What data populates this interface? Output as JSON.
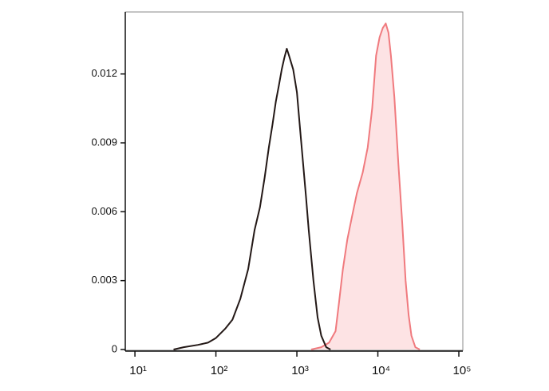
{
  "chart_data": {
    "type": "area",
    "xscale": "log",
    "xlim": [
      7.6,
      112000
    ],
    "xticks": [
      {
        "value": 10,
        "label": "10¹"
      },
      {
        "value": 100,
        "label": "10²"
      },
      {
        "value": 1000,
        "label": "10³"
      },
      {
        "value": 10000,
        "label": "10⁴"
      },
      {
        "value": 100000,
        "label": "10⁵"
      }
    ],
    "ylim": [
      0,
      0.0147
    ],
    "yticks": [
      0,
      0.003,
      0.006,
      0.009,
      0.012
    ],
    "series": [
      {
        "color": "#f07a7e",
        "fill": "#fde3e4",
        "x": [
          1500,
          2000,
          2500,
          3000,
          3300,
          3700,
          4200,
          4800,
          5500,
          6500,
          7500,
          8500,
          9500,
          10500,
          11500,
          12500,
          13500,
          14500,
          16000,
          18000,
          20000,
          22000,
          24000,
          26000,
          29000,
          33000
        ],
        "values": [
          0,
          0.0001,
          0.0003,
          0.0008,
          0.002,
          0.0035,
          0.0048,
          0.0058,
          0.0068,
          0.0077,
          0.0088,
          0.0105,
          0.0128,
          0.0136,
          0.014,
          0.0142,
          0.0138,
          0.0128,
          0.011,
          0.008,
          0.0055,
          0.003,
          0.0015,
          0.0006,
          0.0001,
          0
        ]
      },
      {
        "color": "#231816",
        "fill": "none",
        "x": [
          30,
          40,
          60,
          80,
          100,
          130,
          160,
          200,
          250,
          300,
          350,
          400,
          450,
          500,
          550,
          600,
          650,
          700,
          750,
          800,
          900,
          1000,
          1100,
          1200,
          1300,
          1400,
          1600,
          1800,
          2000,
          2300,
          2600
        ],
        "values": [
          0,
          0.0001,
          0.0002,
          0.0003,
          0.0005,
          0.0009,
          0.0013,
          0.0022,
          0.0035,
          0.0052,
          0.0062,
          0.0075,
          0.0088,
          0.0098,
          0.0108,
          0.0115,
          0.0122,
          0.0127,
          0.0131,
          0.0128,
          0.0122,
          0.0112,
          0.0095,
          0.008,
          0.0066,
          0.0052,
          0.003,
          0.0014,
          0.0006,
          0.0001,
          0
        ]
      }
    ]
  }
}
